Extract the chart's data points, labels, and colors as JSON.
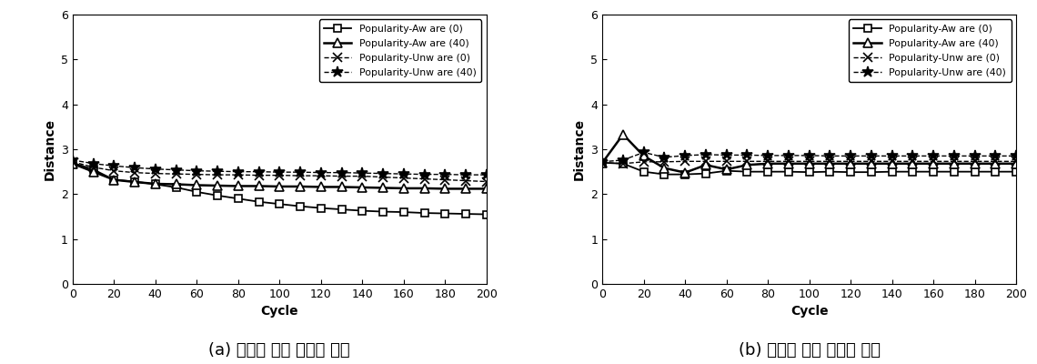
{
  "x": [
    0,
    10,
    20,
    30,
    40,
    50,
    60,
    70,
    80,
    90,
    100,
    110,
    120,
    130,
    140,
    150,
    160,
    170,
    180,
    190,
    200
  ],
  "a_aware0": [
    2.7,
    2.55,
    2.32,
    2.28,
    2.22,
    2.15,
    2.05,
    1.97,
    1.9,
    1.83,
    1.78,
    1.73,
    1.69,
    1.66,
    1.63,
    1.61,
    1.6,
    1.58,
    1.57,
    1.56,
    1.55
  ],
  "a_aware40": [
    2.68,
    2.5,
    2.32,
    2.27,
    2.23,
    2.22,
    2.2,
    2.19,
    2.18,
    2.18,
    2.17,
    2.17,
    2.16,
    2.16,
    2.15,
    2.14,
    2.13,
    2.13,
    2.12,
    2.12,
    2.12
  ],
  "a_unware0": [
    2.72,
    2.6,
    2.52,
    2.48,
    2.46,
    2.45,
    2.44,
    2.43,
    2.43,
    2.42,
    2.42,
    2.41,
    2.41,
    2.4,
    2.4,
    2.38,
    2.36,
    2.34,
    2.32,
    2.3,
    2.28
  ],
  "a_unware40": [
    2.76,
    2.68,
    2.63,
    2.59,
    2.56,
    2.54,
    2.52,
    2.51,
    2.5,
    2.5,
    2.49,
    2.49,
    2.48,
    2.48,
    2.47,
    2.46,
    2.45,
    2.44,
    2.44,
    2.43,
    2.43
  ],
  "b_aware0": [
    2.7,
    2.68,
    2.5,
    2.44,
    2.44,
    2.46,
    2.52,
    2.5,
    2.5,
    2.5,
    2.49,
    2.5,
    2.49,
    2.49,
    2.5,
    2.5,
    2.5,
    2.5,
    2.5,
    2.5,
    2.5
  ],
  "b_aware40": [
    2.7,
    3.33,
    2.85,
    2.58,
    2.48,
    2.65,
    2.55,
    2.65,
    2.68,
    2.68,
    2.68,
    2.68,
    2.68,
    2.68,
    2.68,
    2.68,
    2.68,
    2.68,
    2.68,
    2.68,
    2.68
  ],
  "b_unware0": [
    2.7,
    2.68,
    2.72,
    2.72,
    2.73,
    2.73,
    2.73,
    2.73,
    2.73,
    2.73,
    2.73,
    2.73,
    2.73,
    2.73,
    2.73,
    2.73,
    2.73,
    2.73,
    2.73,
    2.73,
    2.73
  ],
  "b_unware40": [
    2.72,
    2.76,
    2.93,
    2.82,
    2.86,
    2.88,
    2.87,
    2.87,
    2.86,
    2.86,
    2.86,
    2.85,
    2.85,
    2.85,
    2.85,
    2.85,
    2.85,
    2.85,
    2.85,
    2.85,
    2.85
  ],
  "legend_labels": [
    "Popularity-Aw are (0)",
    "Popularity-Aw are (40)",
    "Popularity-Unw are (0)",
    "Popularity-Unw are (40)"
  ],
  "xlabel": "Cycle",
  "ylabel": "Distance",
  "ylim": [
    0,
    6
  ],
  "xlim": [
    0,
    200
  ],
  "yticks": [
    0,
    1,
    2,
    3,
    4,
    5,
    6
  ],
  "xticks": [
    0,
    20,
    40,
    60,
    80,
    100,
    120,
    140,
    160,
    180,
    200
  ],
  "caption_a": "(a) 파일을 많이 소유한 노드",
  "caption_b": "(b) 파일을 적게 소유한 노드",
  "bg_color": "#ffffff",
  "line_color": "#000000"
}
